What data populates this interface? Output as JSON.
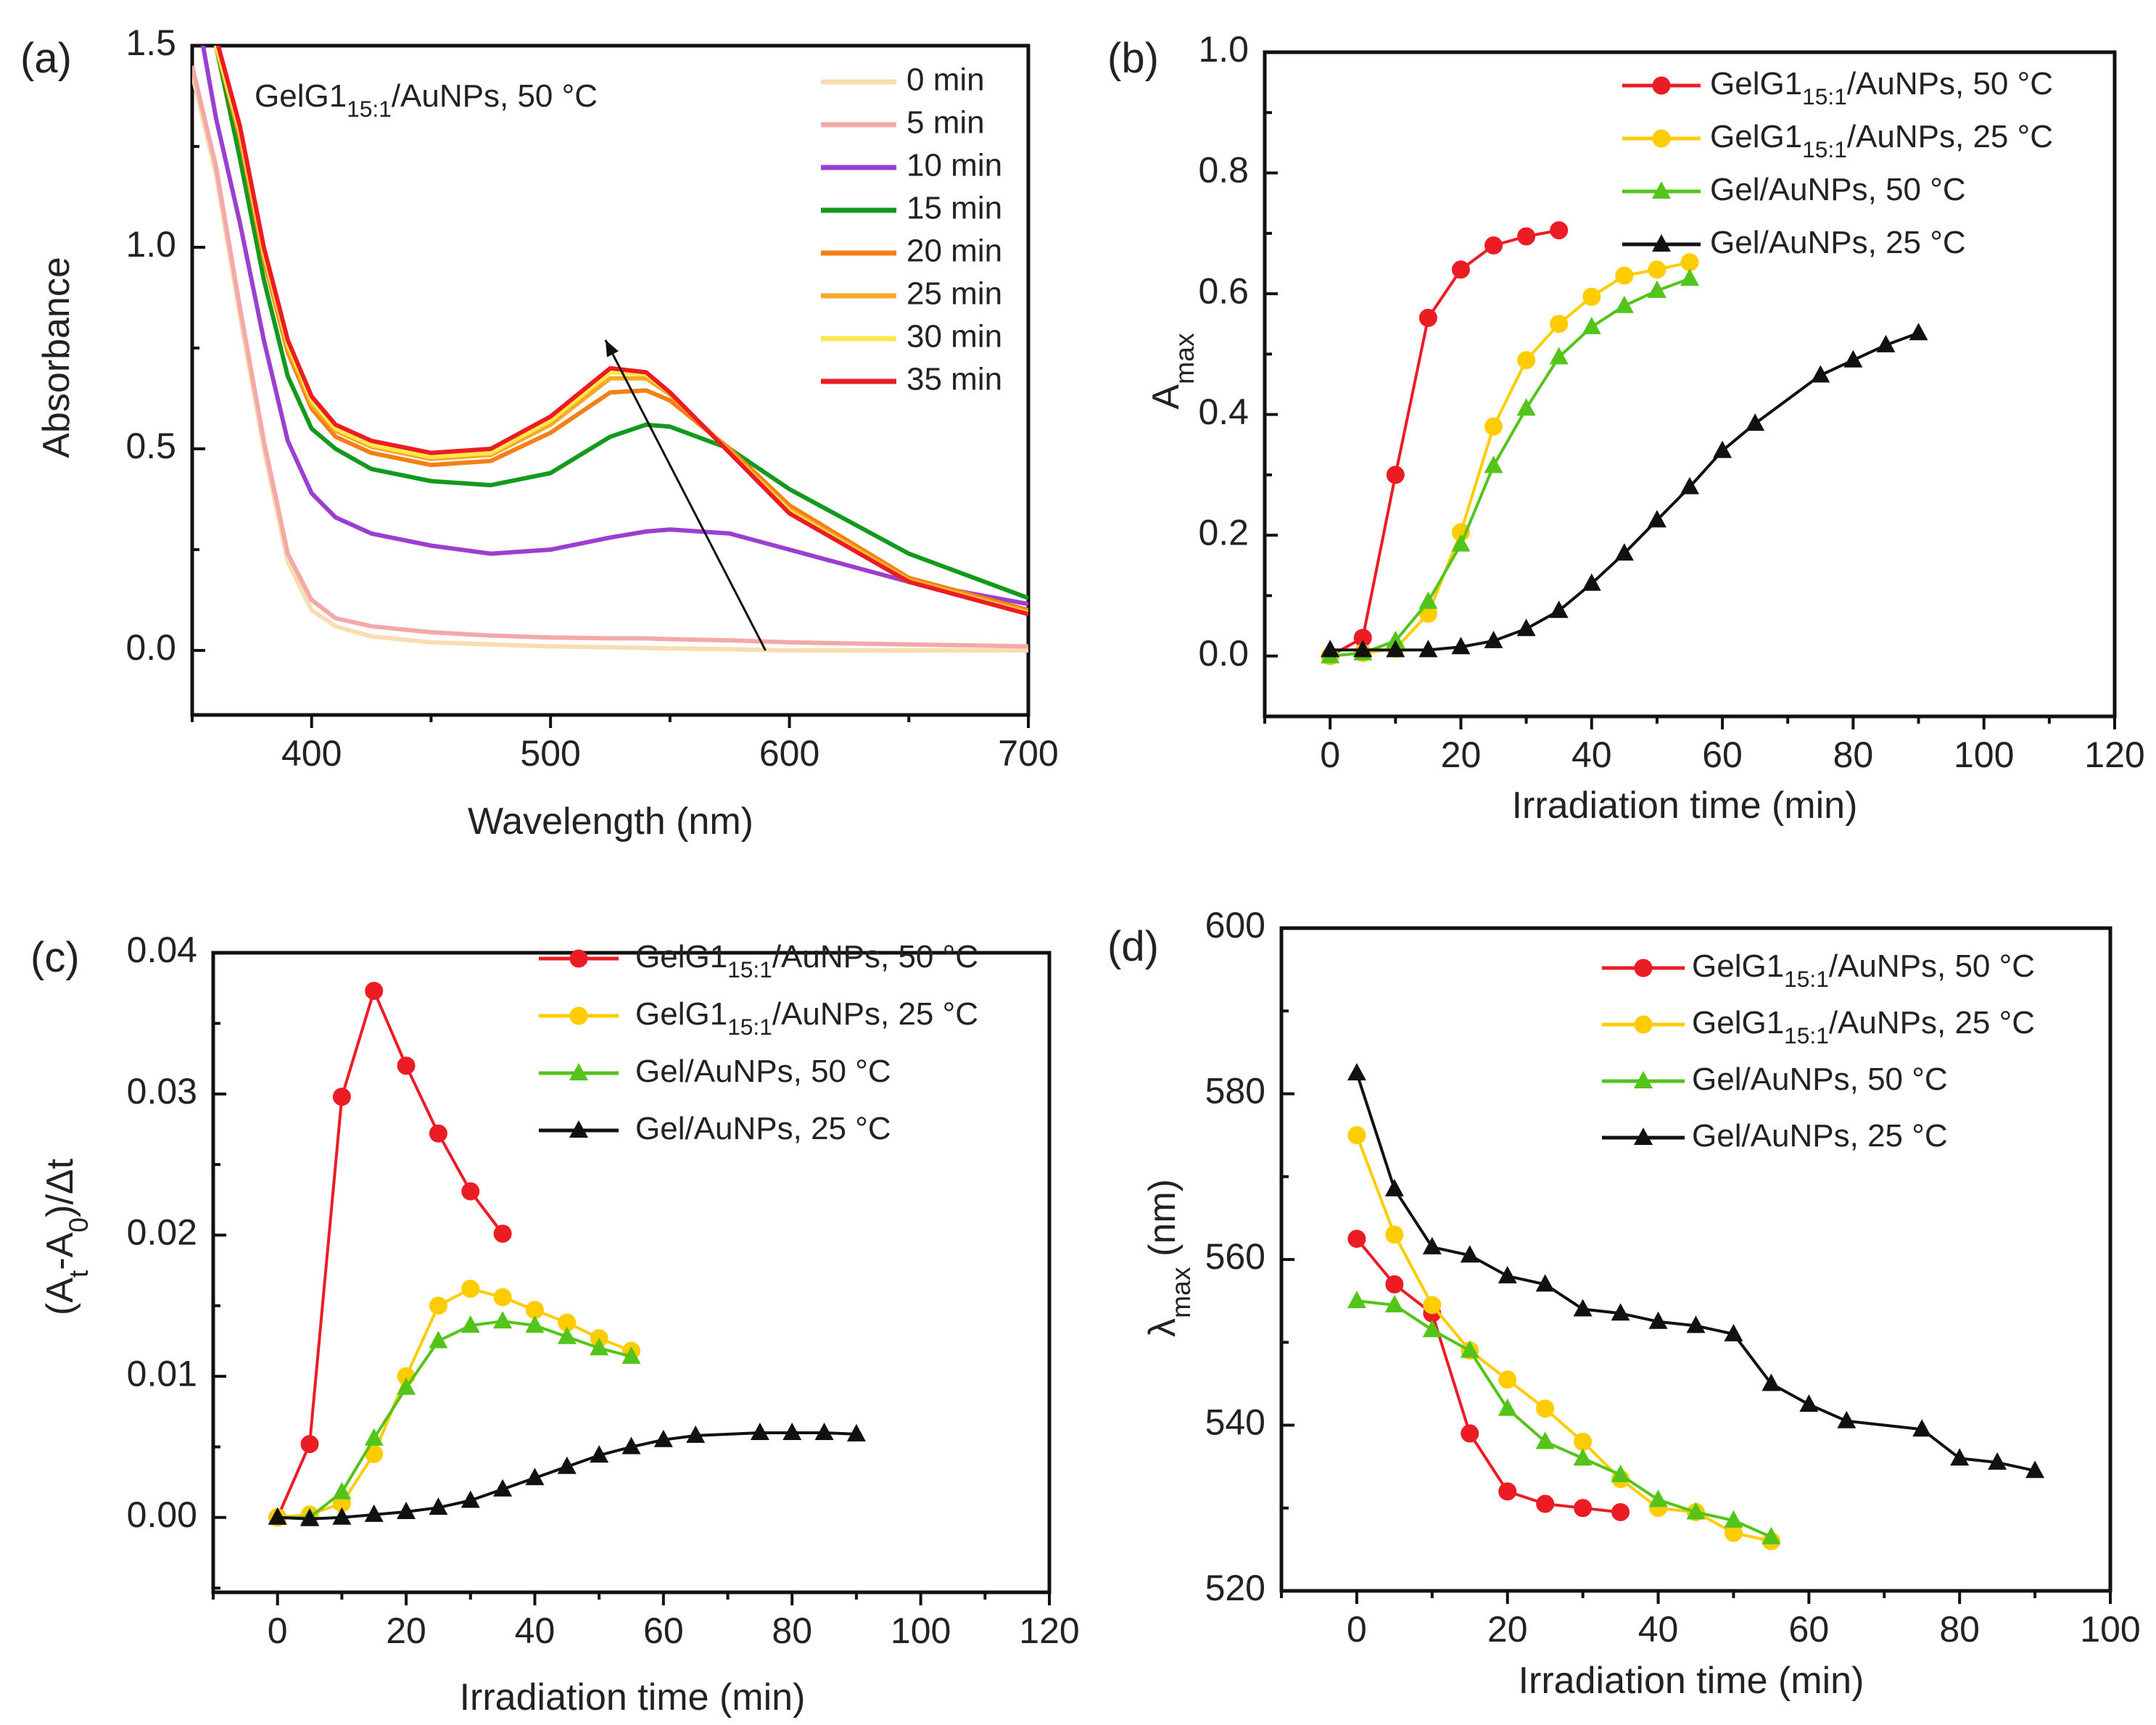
{
  "chart_data": [
    {
      "panel": "(a)",
      "type": "line",
      "annotation": {
        "pre": "GelG1",
        "sub": "15:1",
        "post": "/AuNPs, 50 °C"
      },
      "xlabel": [
        {
          "t": "Wavelength (nm)"
        }
      ],
      "ylabel": [
        {
          "t": "Absorbance"
        }
      ],
      "xlim": [
        350,
        700
      ],
      "ylim": [
        -0.16,
        1.5
      ],
      "xticks": [
        400,
        500,
        600,
        700
      ],
      "xticklabels": [
        "400",
        "500",
        "600",
        "700"
      ],
      "yticks": [
        0,
        0.5,
        1.0,
        1.5
      ],
      "yticklabels": [
        "0.0",
        "0.5",
        "1.0",
        "1.5"
      ],
      "x": [
        350,
        360,
        370,
        380,
        390,
        400,
        410,
        425,
        450,
        475,
        500,
        525,
        540,
        550,
        575,
        600,
        650,
        700
      ],
      "series": [
        {
          "name": "0 min",
          "color": "#f9dcb0",
          "values": [
            1.43,
            1.18,
            0.83,
            0.5,
            0.22,
            0.1,
            0.06,
            0.035,
            0.02,
            0.015,
            0.01,
            0.008,
            0.006,
            0.005,
            0.003,
            0.0,
            0.0,
            0.0
          ]
        },
        {
          "name": "5 min",
          "color": "#f4a9a9",
          "values": [
            1.45,
            1.2,
            0.85,
            0.52,
            0.24,
            0.125,
            0.08,
            0.06,
            0.045,
            0.037,
            0.032,
            0.03,
            0.03,
            0.028,
            0.025,
            0.02,
            0.015,
            0.01
          ]
        },
        {
          "name": "10 min",
          "color": "#9b3fd0",
          "values": [
            1.65,
            1.32,
            1.06,
            0.77,
            0.52,
            0.39,
            0.33,
            0.29,
            0.26,
            0.24,
            0.25,
            0.28,
            0.295,
            0.3,
            0.29,
            0.25,
            0.17,
            0.115
          ]
        },
        {
          "name": "15 min",
          "color": "#139a1e",
          "values": [
            1.8,
            1.5,
            1.22,
            0.92,
            0.68,
            0.55,
            0.5,
            0.45,
            0.42,
            0.41,
            0.44,
            0.53,
            0.56,
            0.555,
            0.5,
            0.4,
            0.24,
            0.13
          ]
        },
        {
          "name": "20 min",
          "color": "#f57f17",
          "values": [
            1.85,
            1.5,
            1.27,
            0.97,
            0.74,
            0.6,
            0.53,
            0.49,
            0.46,
            0.47,
            0.54,
            0.64,
            0.645,
            0.62,
            0.5,
            0.36,
            0.18,
            0.1
          ]
        },
        {
          "name": "25 min",
          "color": "#f9a825",
          "values": [
            1.85,
            1.5,
            1.28,
            0.98,
            0.75,
            0.61,
            0.545,
            0.505,
            0.475,
            0.485,
            0.56,
            0.675,
            0.675,
            0.635,
            0.495,
            0.35,
            0.175,
            0.095
          ]
        },
        {
          "name": "30 min",
          "color": "#fde84a",
          "values": [
            1.85,
            1.5,
            1.29,
            0.99,
            0.76,
            0.62,
            0.55,
            0.51,
            0.48,
            0.49,
            0.57,
            0.69,
            0.685,
            0.64,
            0.49,
            0.345,
            0.17,
            0.092
          ]
        },
        {
          "name": "35 min",
          "color": "#ec1c24",
          "values": [
            1.85,
            1.52,
            1.3,
            1.0,
            0.77,
            0.63,
            0.56,
            0.52,
            0.49,
            0.5,
            0.58,
            0.7,
            0.69,
            0.64,
            0.49,
            0.34,
            0.17,
            0.09
          ]
        }
      ],
      "arrow": {
        "from": [
          590,
          0.0
        ],
        "to": [
          523,
          0.77
        ]
      },
      "legend": "top-right"
    },
    {
      "panel": "(b)",
      "type": "line",
      "xlabel": [
        {
          "t": "Irradiation time (min)"
        }
      ],
      "ylabel": [
        {
          "t": "A"
        },
        {
          "sub": "max"
        }
      ],
      "xlim": [
        -10,
        120
      ],
      "ylim": [
        -0.1,
        1.0
      ],
      "xticks": [
        0,
        20,
        40,
        60,
        80,
        100,
        120
      ],
      "xticklabels": [
        "0",
        "20",
        "40",
        "60",
        "80",
        "100",
        "120"
      ],
      "yticks": [
        0,
        0.2,
        0.4,
        0.6,
        0.8,
        1.0
      ],
      "yticklabels": [
        "0.0",
        "0.2",
        "0.4",
        "0.6",
        "0.8",
        "1.0"
      ],
      "series": [
        {
          "name": {
            "pre": "GelG1",
            "sub": "15:1",
            "post": "/AuNPs, 50 °C"
          },
          "color": "#ec1c24",
          "marker": "circle",
          "x": [
            0,
            5,
            10,
            15,
            20,
            25,
            30,
            35
          ],
          "values": [
            0.0,
            0.03,
            0.3,
            0.56,
            0.64,
            0.68,
            0.695,
            0.705
          ]
        },
        {
          "name": {
            "pre": "GelG1",
            "sub": "15:1",
            "post": "/AuNPs, 25 °C"
          },
          "color": "#ffcc00",
          "marker": "circle",
          "x": [
            0,
            5,
            10,
            15,
            20,
            25,
            30,
            35,
            40,
            45,
            50,
            55
          ],
          "values": [
            0.0,
            0.005,
            0.012,
            0.07,
            0.205,
            0.38,
            0.49,
            0.55,
            0.595,
            0.63,
            0.64,
            0.652
          ]
        },
        {
          "name": {
            "pre": "Gel/AuNPs, 50 °C"
          },
          "color": "#52c41a",
          "marker": "triangle",
          "x": [
            0,
            5,
            10,
            15,
            20,
            25,
            30,
            35,
            40,
            45,
            50,
            55
          ],
          "values": [
            0.0,
            0.005,
            0.025,
            0.09,
            0.185,
            0.315,
            0.41,
            0.495,
            0.545,
            0.58,
            0.605,
            0.625
          ]
        },
        {
          "name": {
            "pre": "Gel/AuNPs, 25 °C"
          },
          "color": "#111111",
          "marker": "triangle",
          "x": [
            0,
            5,
            10,
            15,
            20,
            25,
            30,
            35,
            40,
            45,
            50,
            55,
            60,
            65,
            75,
            80,
            85,
            90
          ],
          "values": [
            0.01,
            0.01,
            0.01,
            0.01,
            0.015,
            0.025,
            0.045,
            0.075,
            0.12,
            0.17,
            0.225,
            0.28,
            0.34,
            0.385,
            0.465,
            0.49,
            0.515,
            0.535
          ]
        }
      ],
      "legend": "top-right"
    },
    {
      "panel": "(c)",
      "type": "line",
      "xlabel": [
        {
          "t": "Irradiation time (min)"
        }
      ],
      "ylabel": [
        {
          "t": "(A"
        },
        {
          "sub": "t"
        },
        {
          "t": "-A"
        },
        {
          "sub": "0"
        },
        {
          "t": ")/Δt"
        }
      ],
      "xlim": [
        -10,
        120
      ],
      "ylim": [
        -0.0053,
        0.04
      ],
      "xticks": [
        0,
        20,
        40,
        60,
        80,
        100,
        120
      ],
      "xticklabels": [
        "0",
        "20",
        "40",
        "60",
        "80",
        "100",
        "120"
      ],
      "yticks": [
        0,
        0.01,
        0.02,
        0.03,
        0.04
      ],
      "yticklabels": [
        "0.00",
        "0.01",
        "0.02",
        "0.03",
        "0.04"
      ],
      "series": [
        {
          "name": {
            "pre": "GelG1",
            "sub": "15:1",
            "post": "/AuNPs, 50 °C"
          },
          "color": "#ec1c24",
          "marker": "circle",
          "x": [
            0,
            5,
            10,
            15,
            20,
            25,
            30,
            35
          ],
          "values": [
            0.0,
            0.0052,
            0.0298,
            0.0373,
            0.032,
            0.0272,
            0.0231,
            0.0201
          ]
        },
        {
          "name": {
            "pre": "GelG1",
            "sub": "15:1",
            "post": "/AuNPs, 25 °C"
          },
          "color": "#ffcc00",
          "marker": "circle",
          "x": [
            0,
            5,
            10,
            15,
            20,
            25,
            30,
            35,
            40,
            45,
            50,
            55
          ],
          "values": [
            0.0,
            0.0002,
            0.001,
            0.0045,
            0.01,
            0.015,
            0.0162,
            0.0156,
            0.0147,
            0.0138,
            0.0127,
            0.0118
          ]
        },
        {
          "name": {
            "pre": "Gel/AuNPs, 50 °C"
          },
          "color": "#52c41a",
          "marker": "triangle",
          "x": [
            0,
            5,
            10,
            15,
            20,
            25,
            30,
            35,
            40,
            45,
            50,
            55
          ],
          "values": [
            0.0,
            0.0,
            0.0018,
            0.0056,
            0.0092,
            0.0125,
            0.0136,
            0.0139,
            0.0136,
            0.0128,
            0.012,
            0.0114
          ]
        },
        {
          "name": {
            "pre": "Gel/AuNPs, 25 °C"
          },
          "color": "#111111",
          "marker": "triangle",
          "x": [
            0,
            5,
            10,
            15,
            20,
            25,
            30,
            35,
            40,
            45,
            50,
            55,
            60,
            65,
            75,
            80,
            85,
            90
          ],
          "values": [
            0.0,
            -0.0001,
            0.0,
            0.0002,
            0.0004,
            0.0007,
            0.0012,
            0.002,
            0.0028,
            0.0036,
            0.0044,
            0.005,
            0.0055,
            0.0058,
            0.006,
            0.006,
            0.006,
            0.0059
          ]
        }
      ],
      "legend": "top-right"
    },
    {
      "panel": "(d)",
      "type": "line",
      "xlabel": [
        {
          "t": "Irradiation time (min)"
        }
      ],
      "ylabel": [
        {
          "t": "λ"
        },
        {
          "sub": "max"
        },
        {
          "t": " (nm)"
        }
      ],
      "xlim": [
        -10,
        100
      ],
      "ylim": [
        520,
        600
      ],
      "xticks": [
        0,
        20,
        40,
        60,
        80,
        100
      ],
      "xticklabels": [
        "0",
        "20",
        "40",
        "60",
        "80",
        "100"
      ],
      "yticks": [
        520,
        540,
        560,
        580,
        600
      ],
      "yticklabels": [
        "520",
        "540",
        "560",
        "580",
        "600"
      ],
      "series": [
        {
          "name": {
            "pre": "GelG1",
            "sub": "15:1",
            "post": "/AuNPs, 50 °C"
          },
          "color": "#ec1c24",
          "marker": "circle",
          "x": [
            0,
            5,
            10,
            15,
            20,
            25,
            30,
            35
          ],
          "values": [
            562.5,
            557,
            553.5,
            539,
            532,
            530.5,
            530,
            529.5
          ]
        },
        {
          "name": {
            "pre": "GelG1",
            "sub": "15:1",
            "post": "/AuNPs, 25 °C"
          },
          "color": "#ffcc00",
          "marker": "circle",
          "x": [
            0,
            5,
            10,
            15,
            20,
            25,
            30,
            35,
            40,
            45,
            50,
            55
          ],
          "values": [
            575,
            563,
            554.5,
            549,
            545.5,
            542,
            538,
            533.5,
            530,
            529.5,
            527,
            526
          ]
        },
        {
          "name": {
            "pre": "Gel/AuNPs, 50 °C"
          },
          "color": "#52c41a",
          "marker": "triangle",
          "x": [
            0,
            5,
            10,
            15,
            20,
            25,
            30,
            35,
            40,
            45,
            50,
            55
          ],
          "values": [
            555,
            554.5,
            551.5,
            549,
            542,
            538,
            536,
            534,
            531,
            529.5,
            528.5,
            526.5
          ]
        },
        {
          "name": {
            "pre": "Gel/AuNPs, 25 °C"
          },
          "color": "#111111",
          "marker": "triangle",
          "x": [
            0,
            5,
            10,
            15,
            20,
            25,
            30,
            35,
            40,
            45,
            50,
            55,
            60,
            65,
            75,
            80,
            85,
            90
          ],
          "values": [
            582.5,
            568.5,
            561.5,
            560.5,
            558,
            557,
            554,
            553.5,
            552.5,
            552,
            551,
            545,
            542.5,
            540.5,
            539.5,
            536,
            535.5,
            534.5
          ]
        }
      ],
      "legend": "top-right"
    }
  ]
}
